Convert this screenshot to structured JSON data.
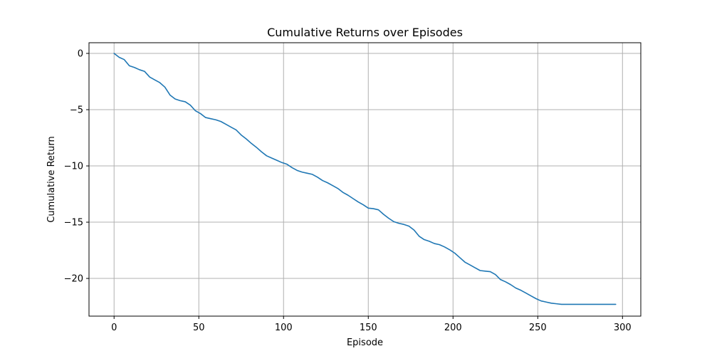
{
  "chart_data": {
    "type": "line",
    "title": "Cumulative Returns over Episodes",
    "xlabel": "Episode",
    "ylabel": "Cumulative Return",
    "xlim": [
      -14.8,
      310.8
    ],
    "ylim": [
      -23.35,
      0.95
    ],
    "xticks": [
      0,
      50,
      100,
      150,
      200,
      250,
      300
    ],
    "yticks": [
      0,
      -5,
      -10,
      -15,
      -20
    ],
    "xtick_labels": [
      "0",
      "50",
      "100",
      "150",
      "200",
      "250",
      "300"
    ],
    "ytick_labels": [
      "0",
      "−5",
      "−10",
      "−15",
      "−20"
    ],
    "grid": true,
    "series": [
      {
        "color": "#1f77b4",
        "x": [
          0,
          3,
          6,
          9,
          12,
          15,
          18,
          21,
          24,
          27,
          30,
          33,
          36,
          39,
          42,
          45,
          48,
          51,
          54,
          57,
          60,
          63,
          66,
          69,
          72,
          75,
          78,
          81,
          84,
          87,
          90,
          93,
          96,
          99,
          102,
          105,
          108,
          111,
          114,
          117,
          120,
          123,
          126,
          129,
          132,
          135,
          138,
          141,
          144,
          147,
          150,
          153,
          156,
          159,
          162,
          165,
          168,
          171,
          174,
          177,
          180,
          183,
          186,
          189,
          192,
          195,
          198,
          201,
          204,
          207,
          210,
          213,
          216,
          219,
          222,
          225,
          228,
          231,
          234,
          237,
          240,
          243,
          246,
          249,
          252,
          255,
          258,
          261,
          264,
          267,
          270,
          273,
          276,
          279,
          282,
          285,
          288,
          291,
          294,
          296
        ],
        "y": [
          0.0,
          -0.35,
          -0.55,
          -1.1,
          -1.25,
          -1.45,
          -1.6,
          -2.1,
          -2.35,
          -2.6,
          -3.0,
          -3.7,
          -4.05,
          -4.2,
          -4.3,
          -4.6,
          -5.1,
          -5.35,
          -5.7,
          -5.8,
          -5.9,
          -6.05,
          -6.3,
          -6.55,
          -6.8,
          -7.25,
          -7.6,
          -8.0,
          -8.35,
          -8.75,
          -9.1,
          -9.3,
          -9.5,
          -9.7,
          -9.85,
          -10.15,
          -10.4,
          -10.55,
          -10.65,
          -10.75,
          -11.0,
          -11.3,
          -11.5,
          -11.75,
          -12.0,
          -12.35,
          -12.6,
          -12.9,
          -13.2,
          -13.45,
          -13.75,
          -13.8,
          -13.9,
          -14.3,
          -14.65,
          -14.95,
          -15.1,
          -15.2,
          -15.35,
          -15.7,
          -16.25,
          -16.55,
          -16.7,
          -16.9,
          -17.0,
          -17.2,
          -17.45,
          -17.75,
          -18.15,
          -18.55,
          -18.8,
          -19.05,
          -19.3,
          -19.35,
          -19.4,
          -19.65,
          -20.1,
          -20.3,
          -20.55,
          -20.85,
          -21.05,
          -21.3,
          -21.55,
          -21.8,
          -22.0,
          -22.1,
          -22.2,
          -22.25,
          -22.3,
          -22.3,
          -22.3,
          -22.3,
          -22.3,
          -22.3,
          -22.3,
          -22.3,
          -22.3,
          -22.3,
          -22.3,
          -22.3
        ]
      }
    ]
  }
}
